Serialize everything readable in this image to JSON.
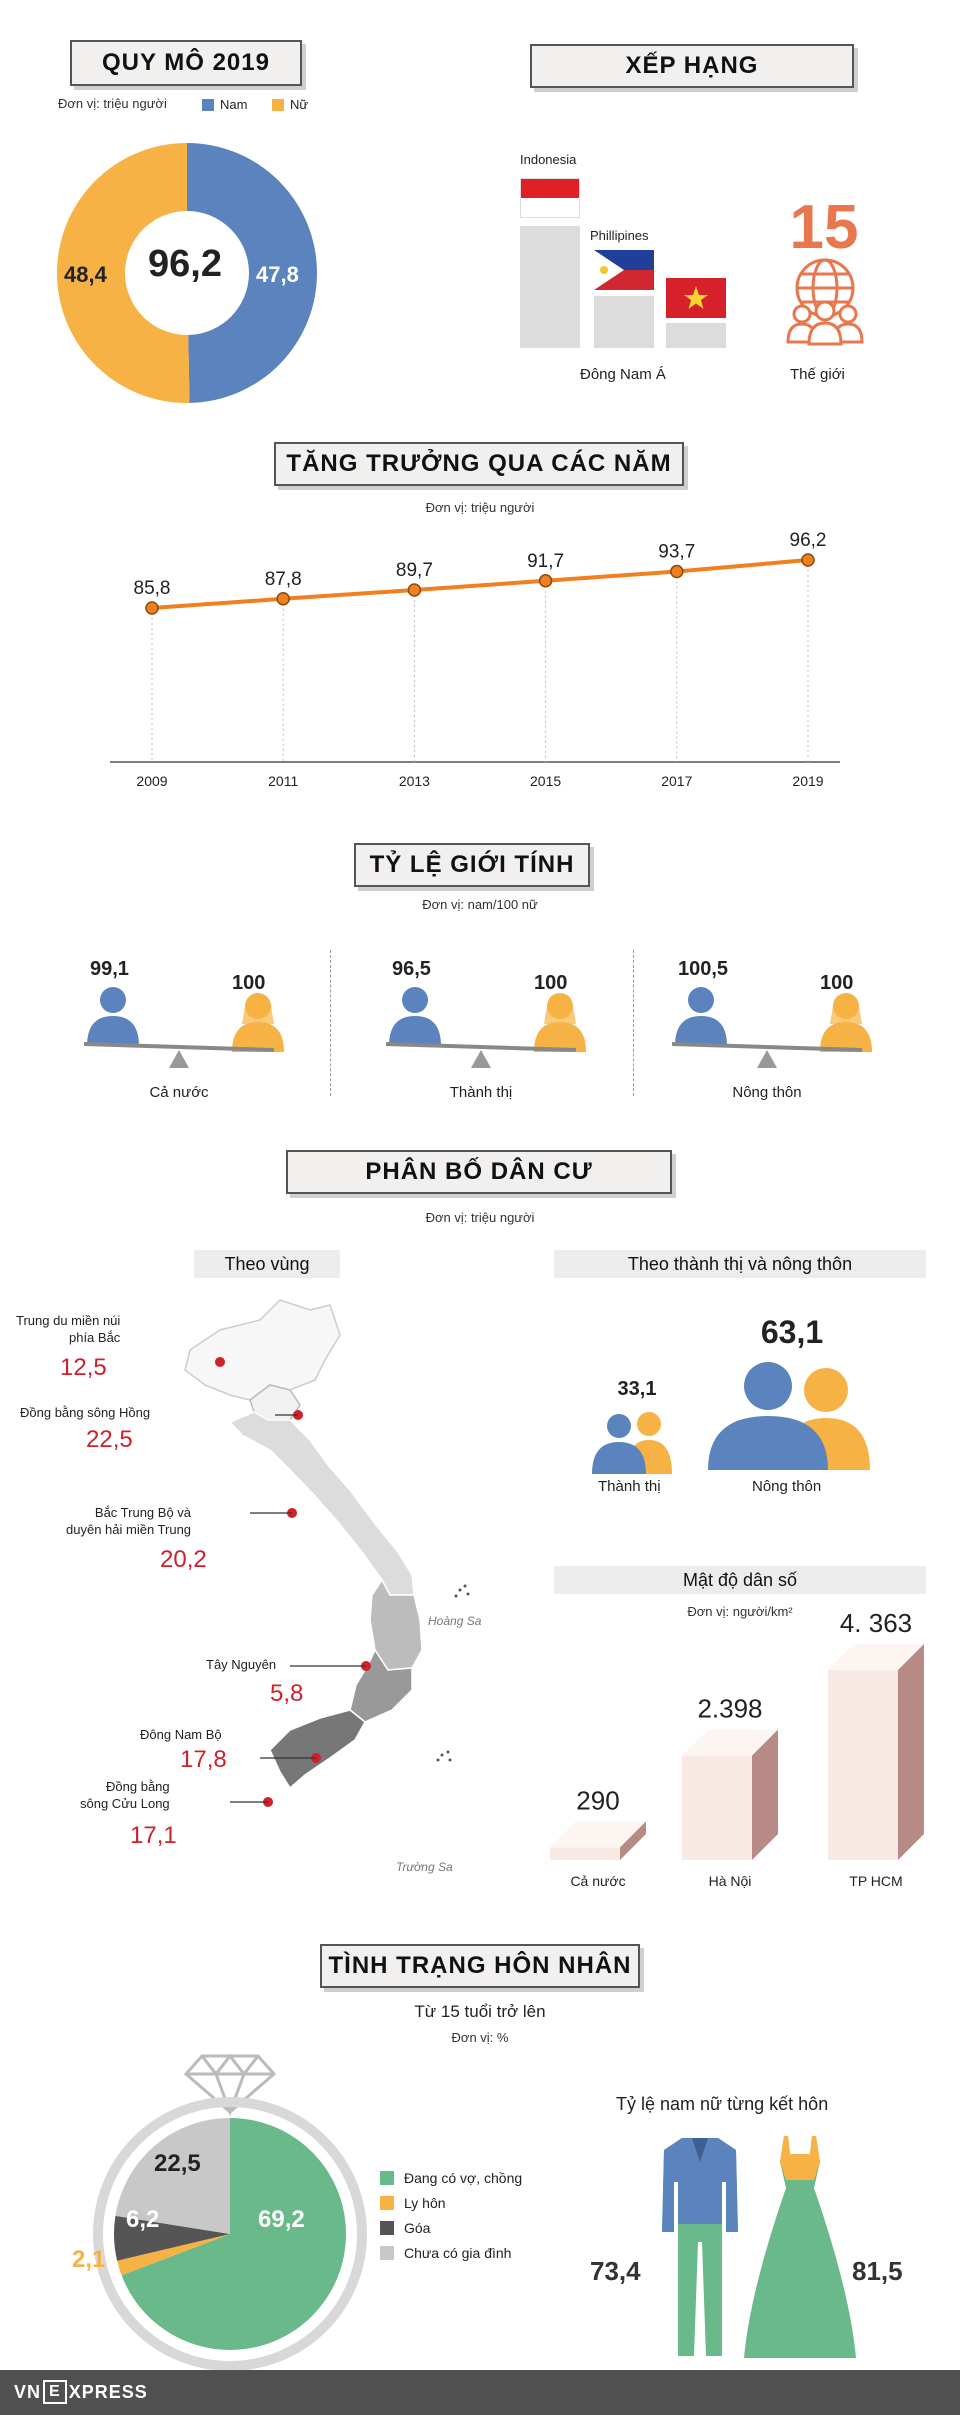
{
  "quy_mo": {
    "title": "QUY MÔ 2019",
    "unit": "Đơn vị: triệu người",
    "legend_nam": "Nam",
    "legend_nu": "Nữ",
    "total": "96,2",
    "nam_label": "47,8",
    "nu_label": "48,4",
    "color_nam": "#5b83bd",
    "color_nu": "#f7b245"
  },
  "xep_hang": {
    "title": "XẾP HẠNG",
    "indonesia": "Indonesia",
    "philippines": "Phillipines",
    "dong_nam_a": "Đông Nam Á",
    "rank": "15",
    "the_gioi": "Thế giới"
  },
  "tang_truong": {
    "title": "TĂNG TRƯỞNG QUA CÁC NĂM",
    "unit": "Đơn vị: triệu người",
    "years": [
      "2009",
      "2011",
      "2013",
      "2015",
      "2017",
      "2019"
    ],
    "value_labels": [
      "85,8",
      "87,8",
      "89,7",
      "91,7",
      "93,7",
      "96,2"
    ]
  },
  "chart_data": [
    {
      "type": "pie",
      "title": "QUY MÔ 2019",
      "labels": [
        "Nam",
        "Nữ"
      ],
      "values": [
        47.8,
        48.4
      ]
    },
    {
      "type": "line",
      "title": "TĂNG TRƯỞNG QUA CÁC NĂM",
      "x": [
        2009,
        2011,
        2013,
        2015,
        2017,
        2019
      ],
      "series": [
        {
          "values": [
            85.8,
            87.8,
            89.7,
            91.7,
            93.7,
            96.2
          ]
        }
      ],
      "ylim": [
        70,
        100
      ]
    },
    {
      "type": "bar",
      "title": "Mật độ dân số",
      "categories": [
        "Cả nước",
        "Hà Nội",
        "TP HCM"
      ],
      "values": [
        290,
        2398,
        4363
      ]
    },
    {
      "type": "pie",
      "title": "TÌNH TRẠNG HÔN NHÂN",
      "labels": [
        "Đang có vợ, chồng",
        "Ly hôn",
        "Góa",
        "Chưa có gia đình"
      ],
      "values": [
        69.2,
        2.1,
        6.2,
        22.5
      ]
    }
  ],
  "gioi_tinh": {
    "title": "TỶ LỆ GIỚI TÍNH",
    "unit": "Đơn vị: nam/100 nữ",
    "groups": [
      {
        "male": "99,1",
        "female": "100",
        "label": "Cả nước"
      },
      {
        "male": "96,5",
        "female": "100",
        "label": "Thành thị"
      },
      {
        "male": "100,5",
        "female": "100",
        "label": "Nông thôn"
      }
    ]
  },
  "phan_bo": {
    "title": "PHÂN BỐ DÂN CƯ",
    "unit": "Đơn vị: triệu người",
    "theo_vung": "Theo vùng",
    "theo_tt_nt": "Theo thành thị và nông thôn",
    "regions": [
      {
        "name1": "Trung du miền núi",
        "name2": "phía Bắc",
        "value": "12,5"
      },
      {
        "name1": "Đồng bằng sông Hồng",
        "name2": "",
        "value": "22,5"
      },
      {
        "name1": "Bắc Trung Bộ và",
        "name2": "duyên hải miền Trung",
        "value": "20,2"
      },
      {
        "name1": "Tây Nguyên",
        "name2": "",
        "value": "5,8"
      },
      {
        "name1": "Đông Nam Bộ",
        "name2": "",
        "value": "17,8"
      },
      {
        "name1": "Đồng bằng",
        "name2": "sông Cửu Long",
        "value": "17,1"
      }
    ],
    "hoang_sa": "Hoàng Sa",
    "truong_sa": "Trường Sa",
    "thanh_thi_value": "33,1",
    "thanh_thi_label": "Thành thị",
    "nong_thon_value": "63,1",
    "nong_thon_label": "Nông thôn",
    "mat_do_title": "Mật độ dân số",
    "mat_do_unit": "Đơn vị: người/km²",
    "density": [
      {
        "value": "290",
        "label": "Cả nước"
      },
      {
        "value": "2.398",
        "label": "Hà Nội"
      },
      {
        "value": "4. 363",
        "label": "TP HCM"
      }
    ]
  },
  "hon_nhan": {
    "title": "TÌNH TRẠNG HÔN NHÂN",
    "subtitle": "Từ 15 tuổi trở lên",
    "unit": "Đơn vị: %",
    "v_married": "69,2",
    "v_single": "22,5",
    "v_widow": "6,2",
    "v_divorce": "2,1",
    "legend": [
      "Đang có vợ, chồng",
      "Ly hôn",
      "Góa",
      "Chưa có gia đình"
    ],
    "colors": [
      "#6ab98a",
      "#f7b245",
      "#555555",
      "#c8c8c8"
    ],
    "ratio_title": "Tỷ lệ nam nữ từng kết hôn",
    "male_ratio": "73,4",
    "female_ratio": "81,5"
  },
  "footer": {
    "logo_left": "VN",
    "logo_e": "E",
    "logo_right": "XPRESS"
  }
}
